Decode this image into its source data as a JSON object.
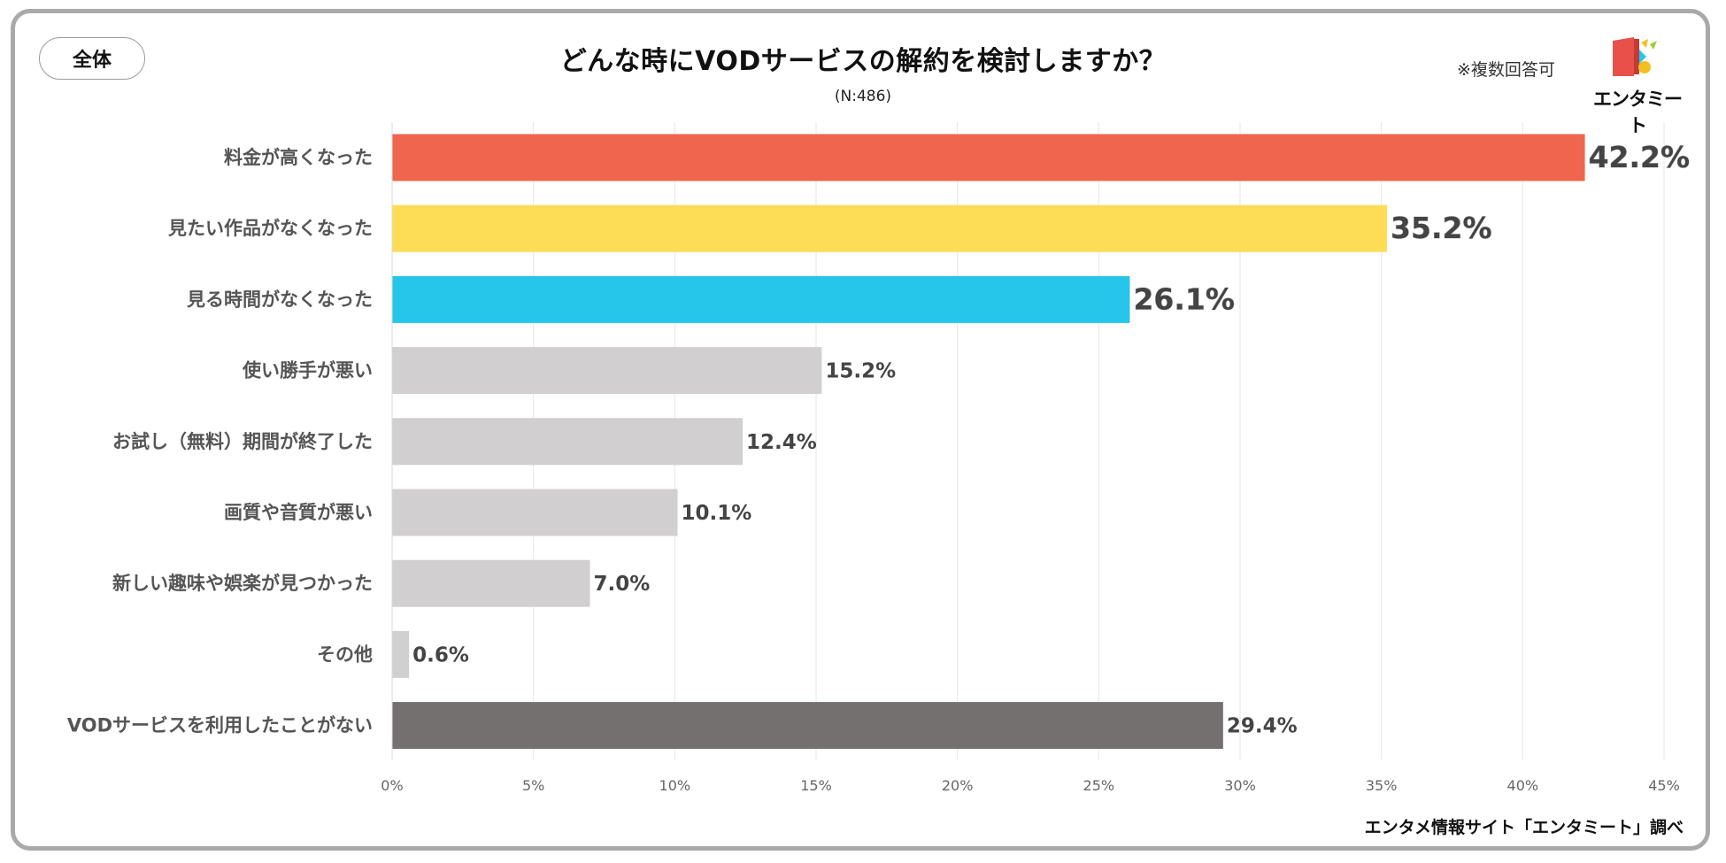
{
  "badge": "全体",
  "note": "※複数回答可",
  "logo": {
    "text": "エンタミート",
    "colors": [
      "#e8514a",
      "#f0c020",
      "#27c6ea",
      "#9ccc3a"
    ]
  },
  "source": "エンタメ情報サイト「エンタミート」調べ",
  "chart_data": {
    "type": "bar",
    "orientation": "horizontal",
    "title": "どんな時にVODサービスの解約を検討しますか？",
    "subtitle": "(N:486)",
    "categories": [
      "料金が高くなった",
      "見たい作品がなくなった",
      "見る時間がなくなった",
      "使い勝手が悪い",
      "お試し（無料）期間が終了した",
      "画質や音質が悪い",
      "新しい趣味や娯楽が見つかった",
      "その他",
      "VODサービスを利用したことがない"
    ],
    "values": [
      42.2,
      35.2,
      26.1,
      15.2,
      12.4,
      10.1,
      7.0,
      0.6,
      29.4
    ],
    "value_labels": [
      "42.2%",
      "35.2%",
      "26.1%",
      "15.2%",
      "12.4%",
      "10.1%",
      "7.0%",
      "0.6%",
      "29.4%"
    ],
    "bar_colors": [
      "#f0654d",
      "#fedd56",
      "#26c6ea",
      "#d1cfcf",
      "#d1cfcf",
      "#d1cfcf",
      "#d1cfcf",
      "#d1cfcf",
      "#757070"
    ],
    "label_colors": [
      "#e8614a",
      "#444444",
      "#444444",
      "#444444",
      "#444444",
      "#444444",
      "#444444",
      "#444444",
      "#444444"
    ],
    "emphasized": [
      true,
      true,
      true,
      false,
      false,
      false,
      false,
      false,
      false
    ],
    "x_ticks": [
      "0%",
      "5%",
      "10%",
      "15%",
      "20%",
      "25%",
      "30%",
      "35%",
      "40%",
      "45%"
    ],
    "xlim": [
      0,
      45
    ],
    "grid": true
  }
}
